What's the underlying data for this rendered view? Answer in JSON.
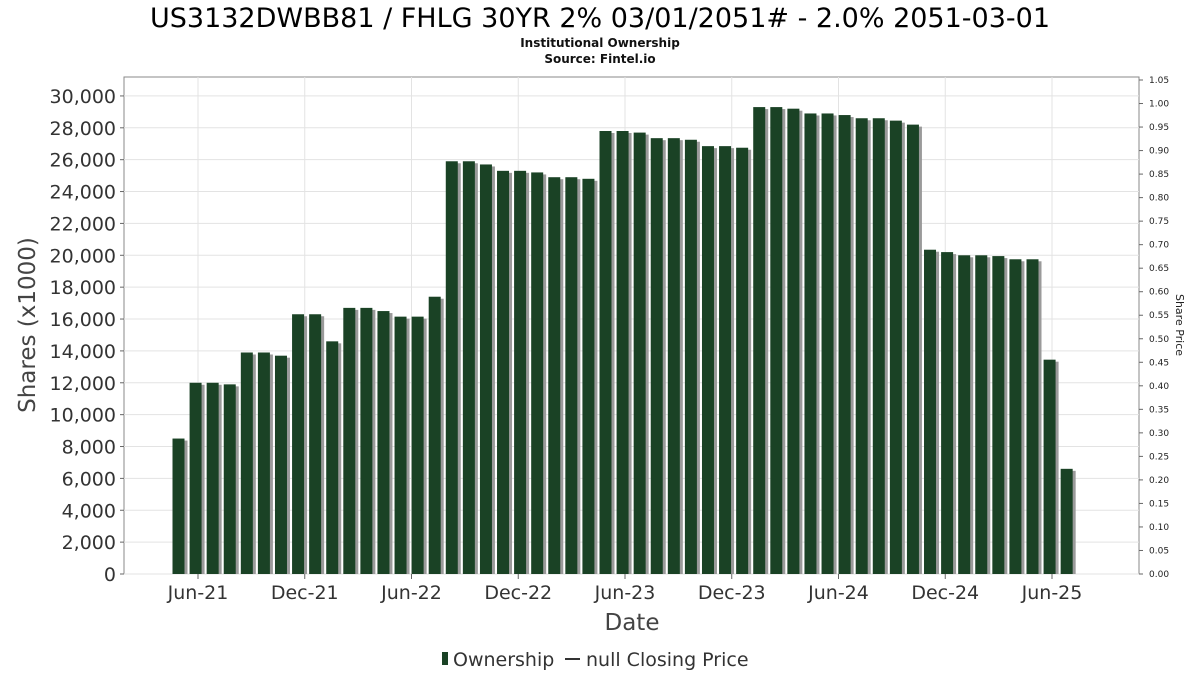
{
  "chart_data": {
    "type": "bar",
    "title": "US3132DWBB81 / FHLG 30YR 2% 03/01/2051# - 2.0% 2051-03-01",
    "subtitle_lines": [
      "Institutional Ownership",
      "Source: Fintel.io"
    ],
    "xlabel": "Date",
    "ylabel": "Shares (x1000)",
    "y2label": "Share Price",
    "ylim": [
      0,
      31000
    ],
    "y_ticks": [
      0,
      2000,
      4000,
      6000,
      8000,
      10000,
      12000,
      14000,
      16000,
      18000,
      20000,
      22000,
      24000,
      26000,
      28000,
      30000
    ],
    "y_tick_labels": [
      "0",
      "2,000",
      "4,000",
      "6,000",
      "8,000",
      "10,000",
      "12,000",
      "14,000",
      "16,000",
      "18,000",
      "20,000",
      "22,000",
      "24,000",
      "26,000",
      "28,000",
      "30,000"
    ],
    "y2lim": [
      0,
      1.05
    ],
    "y2_tick_labels": [
      "0.00",
      "0.05",
      "0.10",
      "0.15",
      "0.20",
      "0.25",
      "0.30",
      "0.35",
      "0.40",
      "0.45",
      "0.50",
      "0.55",
      "0.60",
      "0.65",
      "0.70",
      "0.75",
      "0.80",
      "0.85",
      "0.90",
      "0.95",
      "1.00",
      "1.05"
    ],
    "x_tick_labels": [
      "Jun-21",
      "Dec-21",
      "Jun-22",
      "Dec-22",
      "Jun-23",
      "Dec-23",
      "Jun-24",
      "Dec-24",
      "Jun-25"
    ],
    "grid": true,
    "legend_placement": "bottom-center",
    "series": [
      {
        "name": "Ownership",
        "color": "#1a4225",
        "values": [
          8500,
          12000,
          12000,
          11900,
          13900,
          13900,
          13700,
          16300,
          16300,
          14600,
          16700,
          16700,
          16500,
          16150,
          16150,
          17400,
          25900,
          25900,
          25700,
          25300,
          25300,
          25200,
          24900,
          24900,
          24800,
          27800,
          27800,
          27700,
          27350,
          27350,
          27250,
          26850,
          26850,
          26750,
          29300,
          29300,
          29200,
          28900,
          28900,
          28800,
          28600,
          28600,
          28450,
          28200,
          20350,
          20200,
          20000,
          20000,
          19950,
          19750,
          19750,
          13450,
          6600
        ]
      }
    ],
    "legend": [
      {
        "label": "Ownership",
        "symbol": "bar",
        "color": "#1a4225"
      },
      {
        "label": "null Closing Price",
        "symbol": "line",
        "color": "#333333"
      }
    ]
  }
}
